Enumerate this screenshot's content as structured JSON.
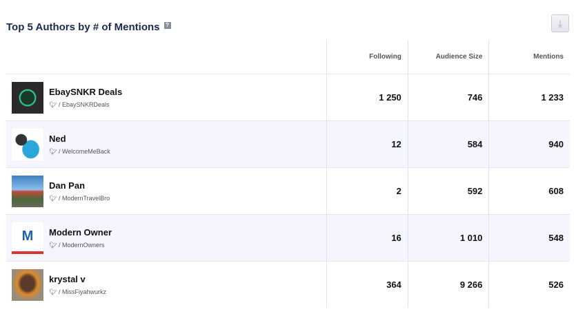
{
  "title": "Top 5 Authors by # of Mentions",
  "help_icon": "?",
  "download_icon": "download-icon",
  "columns": [
    "Following",
    "Audience Size",
    "Mentions"
  ],
  "rows": [
    {
      "name": "EbaySNKR Deals",
      "handle": "EbaySNKRDeals",
      "following": "1 250",
      "audience": "746",
      "mentions": "1 233"
    },
    {
      "name": "Ned",
      "handle": "WelcomeMeBack",
      "following": "12",
      "audience": "584",
      "mentions": "940"
    },
    {
      "name": "Dan Pan",
      "handle": "ModernTravelBro",
      "following": "2",
      "audience": "592",
      "mentions": "608"
    },
    {
      "name": "Modern Owner",
      "handle": "ModernOwners",
      "following": "16",
      "audience": "1 010",
      "mentions": "548"
    },
    {
      "name": "krystal v",
      "handle": "MissFiyahwurkz",
      "following": "364",
      "audience": "9 266",
      "mentions": "526"
    }
  ]
}
